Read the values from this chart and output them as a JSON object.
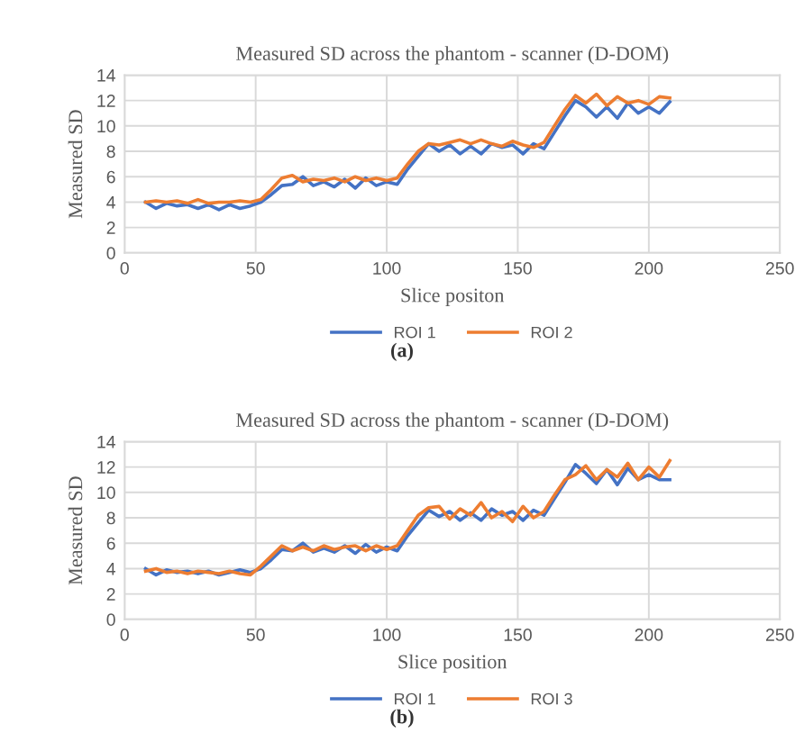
{
  "chart_data": [
    {
      "type": "line",
      "title": "Measured SD across the phantom - scanner (D-DOM)",
      "xlabel": "Slice positon",
      "ylabel": "Measured SD",
      "xlim": [
        0,
        250
      ],
      "xticks": [
        0,
        50,
        100,
        150,
        200,
        250
      ],
      "ylim": [
        0,
        14
      ],
      "yticks": [
        0,
        2,
        4,
        6,
        8,
        10,
        12,
        14
      ],
      "grid": true,
      "legend": "bottom",
      "annotations": [
        "(a)"
      ],
      "x": [
        8,
        12,
        16,
        20,
        24,
        28,
        32,
        36,
        40,
        44,
        48,
        52,
        56,
        60,
        64,
        68,
        72,
        76,
        80,
        84,
        88,
        92,
        96,
        100,
        104,
        108,
        112,
        116,
        120,
        124,
        128,
        132,
        136,
        140,
        144,
        148,
        152,
        156,
        160,
        164,
        168,
        172,
        176,
        180,
        184,
        188,
        192,
        196,
        200,
        204,
        208
      ],
      "series": [
        {
          "name": "ROI 1",
          "color": "#4472c4",
          "values": [
            4.0,
            3.5,
            3.9,
            3.7,
            3.8,
            3.5,
            3.8,
            3.4,
            3.8,
            3.5,
            3.7,
            4.0,
            4.6,
            5.3,
            5.4,
            6.0,
            5.3,
            5.6,
            5.2,
            5.8,
            5.1,
            5.9,
            5.3,
            5.6,
            5.4,
            6.6,
            7.6,
            8.6,
            8.0,
            8.5,
            7.8,
            8.4,
            7.8,
            8.6,
            8.3,
            8.5,
            7.8,
            8.6,
            8.2,
            9.5,
            10.8,
            12.0,
            11.5,
            10.7,
            11.5,
            10.6,
            11.8,
            11.0,
            11.5,
            11.0,
            11.9
          ]
        },
        {
          "name": "ROI 2",
          "color": "#ed7d31",
          "values": [
            4.0,
            4.1,
            4.0,
            4.1,
            3.9,
            4.2,
            3.9,
            4.0,
            4.0,
            4.1,
            4.0,
            4.2,
            5.0,
            5.9,
            6.1,
            5.6,
            5.8,
            5.7,
            5.9,
            5.6,
            6.0,
            5.7,
            5.9,
            5.7,
            5.9,
            7.0,
            8.0,
            8.6,
            8.5,
            8.7,
            8.9,
            8.6,
            8.9,
            8.6,
            8.4,
            8.8,
            8.5,
            8.3,
            8.7,
            10.0,
            11.3,
            12.4,
            11.8,
            12.5,
            11.6,
            12.3,
            11.8,
            12.0,
            11.7,
            12.3,
            12.2
          ]
        }
      ]
    },
    {
      "type": "line",
      "title": "Measured SD across the phantom - scanner (D-DOM)",
      "xlabel": "Slice position",
      "ylabel": "Measured SD",
      "xlim": [
        0,
        250
      ],
      "xticks": [
        0,
        50,
        100,
        150,
        200,
        250
      ],
      "ylim": [
        0,
        14
      ],
      "yticks": [
        0,
        2,
        4,
        6,
        8,
        10,
        12,
        14
      ],
      "grid": true,
      "legend": "bottom",
      "annotations": [
        "(b)"
      ],
      "x": [
        8,
        12,
        16,
        20,
        24,
        28,
        32,
        36,
        40,
        44,
        48,
        52,
        56,
        60,
        64,
        68,
        72,
        76,
        80,
        84,
        88,
        92,
        96,
        100,
        104,
        108,
        112,
        116,
        120,
        124,
        128,
        132,
        136,
        140,
        144,
        148,
        152,
        156,
        160,
        164,
        168,
        172,
        176,
        180,
        184,
        188,
        192,
        196,
        200,
        204,
        208
      ],
      "series": [
        {
          "name": "ROI 1",
          "color": "#4472c4",
          "values": [
            4.0,
            3.5,
            3.9,
            3.7,
            3.8,
            3.6,
            3.8,
            3.5,
            3.7,
            3.9,
            3.7,
            4.0,
            4.7,
            5.5,
            5.4,
            6.0,
            5.3,
            5.6,
            5.3,
            5.8,
            5.2,
            5.9,
            5.3,
            5.7,
            5.4,
            6.6,
            7.6,
            8.6,
            8.1,
            8.5,
            7.8,
            8.4,
            7.8,
            8.7,
            8.2,
            8.5,
            7.8,
            8.6,
            8.2,
            9.5,
            10.8,
            12.2,
            11.5,
            10.7,
            11.8,
            10.6,
            11.9,
            11.0,
            11.4,
            11.0,
            11.0
          ]
        },
        {
          "name": "ROI 3",
          "color": "#ed7d31",
          "values": [
            3.8,
            4.0,
            3.7,
            3.8,
            3.6,
            3.8,
            3.7,
            3.6,
            3.8,
            3.6,
            3.5,
            4.2,
            5.0,
            5.8,
            5.4,
            5.7,
            5.4,
            5.8,
            5.5,
            5.7,
            5.8,
            5.4,
            5.8,
            5.5,
            5.8,
            7.0,
            8.2,
            8.8,
            8.9,
            7.9,
            8.7,
            8.2,
            9.2,
            8.0,
            8.5,
            7.7,
            8.9,
            8.0,
            8.5,
            9.8,
            11.0,
            11.4,
            12.1,
            11.0,
            11.8,
            11.2,
            12.3,
            11.0,
            12.0,
            11.2,
            12.5
          ]
        }
      ]
    }
  ]
}
